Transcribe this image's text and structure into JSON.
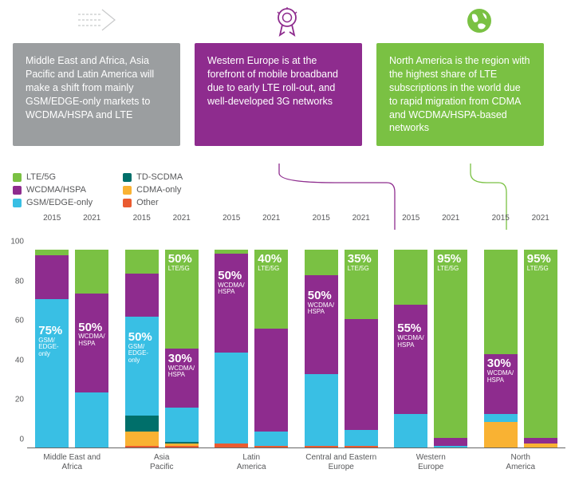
{
  "colors": {
    "lte": "#7ac143",
    "wcdma": "#8e2c8e",
    "gsm": "#39bfe4",
    "tdscdma": "#006f6a",
    "cdma": "#f9b233",
    "other": "#ea5b30",
    "grey_box": "#9b9ea0",
    "axis_text": "#58595b"
  },
  "callouts": [
    {
      "text": "Middle East and Africa, Asia Pacific and Latin America will make a shift from mainly GSM/EDGE-only markets to WCDMA/HSPA and LTE",
      "bg_key": "grey_box",
      "icon": "arrow"
    },
    {
      "text": "Western Europe is at the forefront of mobile broadband due to early LTE roll-out, and well-developed 3G networks",
      "bg_key": "wcdma",
      "icon": "ribbon"
    },
    {
      "text": "North America is the region with the highest share of LTE subscriptions in the world due to rapid migration from CDMA and WCDMA/HSPA-based networks",
      "bg_key": "lte",
      "icon": "globe"
    }
  ],
  "legend": [
    [
      {
        "label": "LTE/5G",
        "color_key": "lte"
      },
      {
        "label": "WCDMA/HSPA",
        "color_key": "wcdma"
      },
      {
        "label": "GSM/EDGE-only",
        "color_key": "gsm"
      }
    ],
    [
      {
        "label": "TD-SCDMA",
        "color_key": "tdscdma"
      },
      {
        "label": "CDMA-only",
        "color_key": "cdma"
      },
      {
        "label": "Other",
        "color_key": "other"
      }
    ]
  ],
  "chart": {
    "ylim": [
      0,
      100
    ],
    "yticks": [
      0,
      20,
      40,
      60,
      80,
      100
    ],
    "years": [
      "2015",
      "2021"
    ],
    "series_order": [
      "other",
      "cdma",
      "tdscdma",
      "gsm",
      "wcdma",
      "lte"
    ],
    "groups": [
      {
        "label": "Middle East and Africa",
        "bars": [
          {
            "seg": {
              "gsm": 75,
              "wcdma": 22,
              "lte": 3
            },
            "annot": {
              "pct": "75%",
              "sub": "GSM/\nEDGE-only",
              "seg": "gsm",
              "top": 32
            }
          },
          {
            "seg": {
              "gsm": 28,
              "wcdma": 50,
              "lte": 22
            },
            "annot": {
              "pct": "50%",
              "sub": "WCDMA/\nHSPA",
              "seg": "wcdma",
              "top": 35
            }
          }
        ]
      },
      {
        "label": "Asia Pacific",
        "bars": [
          {
            "seg": {
              "other": 1,
              "cdma": 7,
              "tdscdma": 8,
              "gsm": 50,
              "wcdma": 22,
              "lte": 12
            },
            "annot": {
              "pct": "50%",
              "sub": "GSM/\nEDGE-only",
              "seg": "gsm",
              "top": 18
            }
          },
          {
            "seg": {
              "other": 1,
              "cdma": 1,
              "tdscdma": 1,
              "gsm": 17,
              "wcdma": 30,
              "lte": 50
            },
            "annot": {
              "pct": "30%",
              "sub": "WCDMA/\nHSPA",
              "seg": "wcdma",
              "top": 5
            },
            "annot2": {
              "pct": "50%",
              "sub": "LTE/5G",
              "seg": "lte",
              "top": 4
            }
          }
        ]
      },
      {
        "label": "Latin America",
        "bars": [
          {
            "seg": {
              "other": 2,
              "gsm": 46,
              "wcdma": 50,
              "lte": 2
            },
            "annot": {
              "pct": "50%",
              "sub": "WCDMA/\nHSPA",
              "seg": "wcdma",
              "top": 20
            }
          },
          {
            "seg": {
              "other": 1,
              "gsm": 7,
              "wcdma": 52,
              "lte": 40
            },
            "annot": {
              "pct": "40%",
              "sub": "LTE/5G",
              "seg": "lte",
              "top": 4
            }
          }
        ]
      },
      {
        "label": "Central and Eastern Europe",
        "bars": [
          {
            "seg": {
              "other": 1,
              "gsm": 36,
              "wcdma": 50,
              "lte": 13
            },
            "annot": {
              "pct": "50%",
              "sub": "WCDMA/\nHSPA",
              "seg": "wcdma",
              "top": 18
            }
          },
          {
            "seg": {
              "other": 1,
              "gsm": 8,
              "wcdma": 56,
              "lte": 35
            },
            "annot": {
              "pct": "35%",
              "sub": "LTE/5G",
              "seg": "lte",
              "top": 4
            }
          }
        ]
      },
      {
        "label": "Western Europe",
        "bars": [
          {
            "seg": {
              "gsm": 17,
              "wcdma": 55,
              "lte": 28
            },
            "annot": {
              "pct": "55%",
              "sub": "WCDMA/\nHSPA",
              "seg": "wcdma",
              "top": 22
            }
          },
          {
            "seg": {
              "gsm": 1,
              "wcdma": 4,
              "lte": 95
            },
            "annot": {
              "pct": "95%",
              "sub": "LTE/5G",
              "seg": "lte",
              "top": 4
            }
          }
        ]
      },
      {
        "label": "North America",
        "bars": [
          {
            "seg": {
              "cdma": 13,
              "gsm": 4,
              "wcdma": 30,
              "lte": 53
            },
            "annot": {
              "pct": "30%",
              "sub": "WCDMA/\nHSPA",
              "seg": "wcdma",
              "top": 4
            }
          },
          {
            "seg": {
              "cdma": 2,
              "wcdma": 3,
              "lte": 95
            },
            "annot": {
              "pct": "95%",
              "sub": "LTE/5G",
              "seg": "lte",
              "top": 4
            }
          }
        ]
      }
    ]
  },
  "connectors": [
    {
      "color_key": "wcdma",
      "from": [
        350,
        205
      ],
      "to": [
        495,
        288
      ],
      "mid": 420
    },
    {
      "color_key": "lte",
      "from": [
        590,
        205
      ],
      "to": [
        635,
        288
      ],
      "mid": 610
    }
  ]
}
